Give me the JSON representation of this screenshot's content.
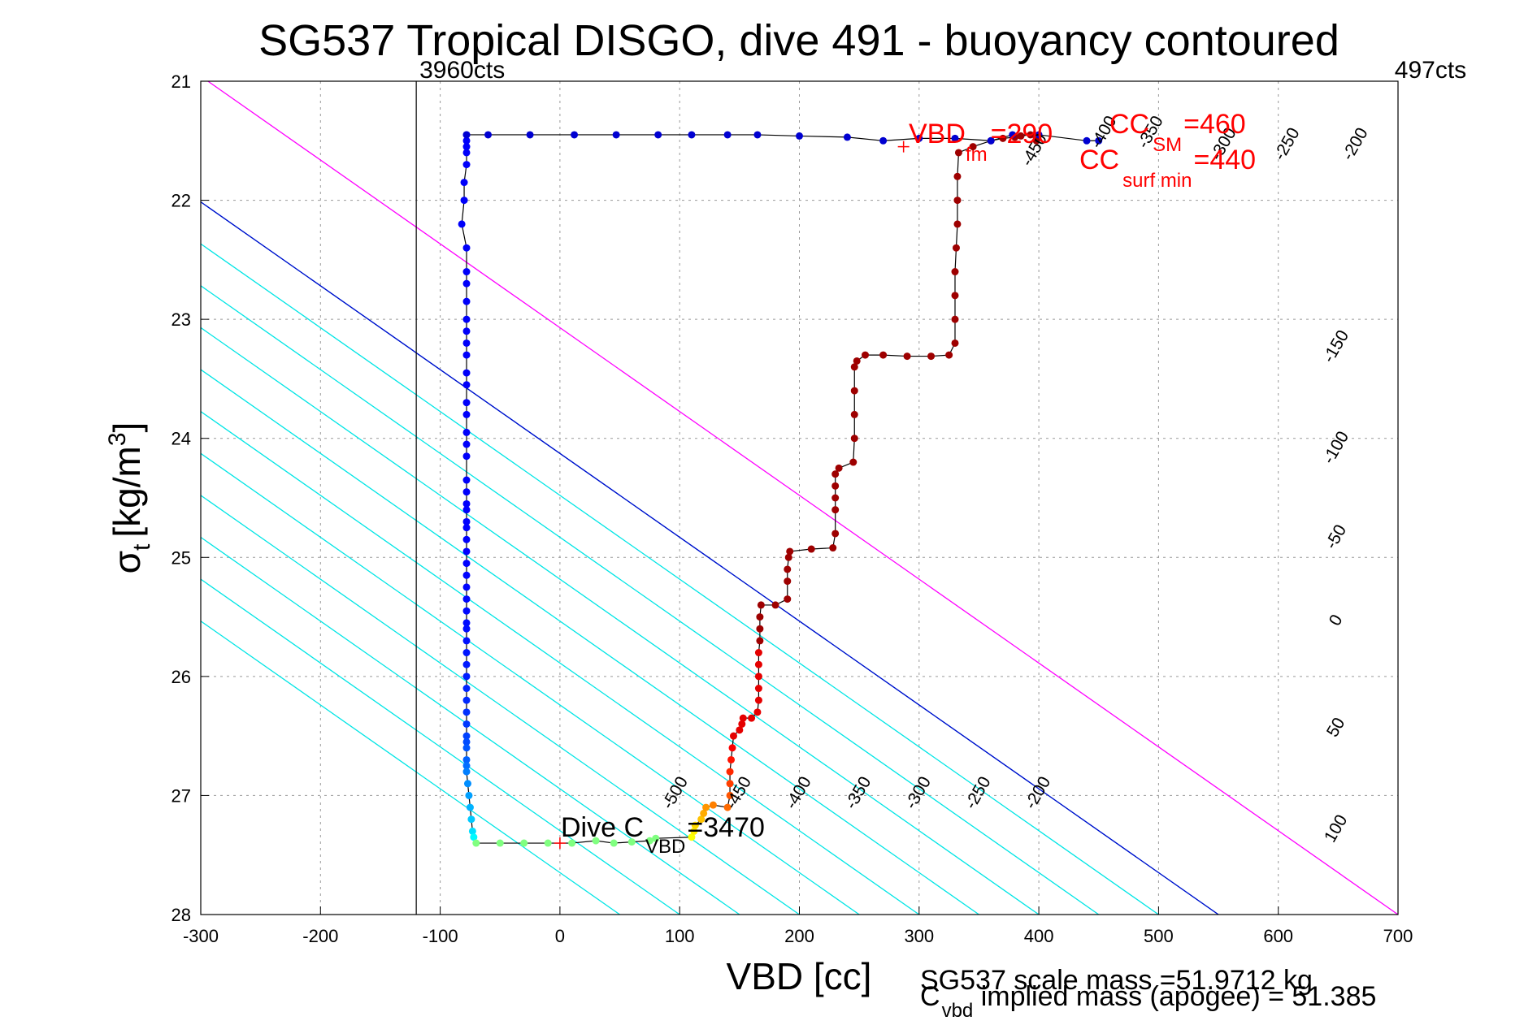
{
  "chart_data": {
    "type": "scatter",
    "title": "SG537 Tropical DISGO, dive 491 - buoyancy contoured",
    "xlabel": "VBD [cc]",
    "ylabel_base": "σ",
    "ylabel_sub": "t",
    "ylabel_unit": "[kg/m",
    "ylabel_sup": "3",
    "ylabel_close": "]",
    "xlim": [
      -300,
      700
    ],
    "ylim": [
      21,
      28
    ],
    "y_reversed": true,
    "grid": true,
    "xticks": [
      -300,
      -200,
      -100,
      0,
      100,
      200,
      300,
      400,
      500,
      600,
      700
    ],
    "yticks": [
      21,
      22,
      23,
      24,
      25,
      26,
      27,
      28
    ],
    "vline_cts": [
      {
        "x": -120,
        "label": "3960cts"
      },
      {
        "x": 700,
        "label": "497cts"
      }
    ],
    "contours": {
      "slope_cc_per_sigma": 28.5,
      "cyan_levels": [
        -550,
        -500,
        -450,
        -400,
        -350,
        -300,
        -250,
        -200,
        -150,
        -100,
        -50
      ],
      "labeled_lower": [
        {
          "level": -500,
          "text": "-500",
          "x": 100,
          "y": 27.0
        },
        {
          "level": -450,
          "text": "-450",
          "x": 153,
          "y": 27.0
        },
        {
          "level": -400,
          "text": "-400",
          "x": 203,
          "y": 27.0
        },
        {
          "level": -350,
          "text": "-350",
          "x": 253,
          "y": 27.0
        },
        {
          "level": -300,
          "text": "-300",
          "x": 303,
          "y": 27.0
        },
        {
          "level": -250,
          "text": "-250",
          "x": 353,
          "y": 27.0
        },
        {
          "level": -200,
          "text": "-200",
          "x": 403,
          "y": 27.0
        }
      ],
      "labeled_right": [
        {
          "text": "-150",
          "x": 652,
          "y": 23.25
        },
        {
          "text": "-100",
          "x": 652,
          "y": 24.1
        },
        {
          "text": "-50",
          "x": 652,
          "y": 24.85
        },
        {
          "text": "0",
          "x": 652,
          "y": 25.55
        },
        {
          "text": "50",
          "x": 652,
          "y": 26.45
        },
        {
          "text": "100",
          "x": 652,
          "y": 27.3
        }
      ],
      "labeled_top": [
        {
          "text": "-450",
          "x": 400,
          "y": 21.6
        },
        {
          "text": "-400",
          "x": 458,
          "y": 21.45
        },
        {
          "text": "-350",
          "x": 497,
          "y": 21.45
        },
        {
          "text": "-300",
          "x": 558,
          "y": 21.55
        },
        {
          "text": "-250",
          "x": 611,
          "y": 21.55
        },
        {
          "text": "-200",
          "x": 668,
          "y": 21.55
        }
      ],
      "zero_line": {
        "level": 0,
        "color": "#0000cc"
      },
      "hundred_line": {
        "level": 100,
        "color": "#ff00ff"
      }
    },
    "series": [
      {
        "descent_blue": [
          [
            -78,
            21.45
          ],
          [
            -78,
            21.5
          ],
          [
            -78,
            21.55
          ],
          [
            -78,
            21.6
          ],
          [
            -78,
            21.7
          ],
          [
            -80,
            21.85
          ],
          [
            -80,
            22.0
          ],
          [
            -82,
            22.2
          ],
          [
            -78,
            22.4
          ],
          [
            -78,
            22.6
          ],
          [
            -78,
            22.7
          ],
          [
            -78,
            22.85
          ],
          [
            -78,
            23.0
          ],
          [
            -78,
            23.1
          ],
          [
            -78,
            23.2
          ],
          [
            -78,
            23.3
          ],
          [
            -78,
            23.45
          ],
          [
            -78,
            23.55
          ],
          [
            -78,
            23.7
          ],
          [
            -78,
            23.8
          ],
          [
            -78,
            23.95
          ],
          [
            -78,
            24.05
          ],
          [
            -78,
            24.15
          ],
          [
            -78,
            24.35
          ],
          [
            -78,
            24.45
          ],
          [
            -78,
            24.55
          ],
          [
            -78,
            24.6
          ],
          [
            -78,
            24.7
          ],
          [
            -78,
            24.75
          ],
          [
            -78,
            24.85
          ],
          [
            -78,
            24.95
          ],
          [
            -78,
            25.05
          ],
          [
            -78,
            25.15
          ],
          [
            -78,
            25.25
          ],
          [
            -78,
            25.35
          ],
          [
            -78,
            25.45
          ],
          [
            -78,
            25.55
          ],
          [
            -78,
            25.6
          ],
          [
            -78,
            25.7
          ],
          [
            -78,
            25.8
          ],
          [
            -78,
            25.9
          ],
          [
            -78,
            26.0
          ],
          [
            -78,
            26.1
          ],
          [
            -78,
            26.2
          ],
          [
            -78,
            26.3
          ],
          [
            -78,
            26.4
          ],
          [
            -78,
            26.5
          ],
          [
            -78,
            26.55
          ],
          [
            -78,
            26.6
          ],
          [
            -78,
            26.7
          ],
          [
            -78,
            26.75
          ],
          [
            -78,
            26.8
          ],
          [
            -77,
            26.9
          ],
          [
            -76,
            27.0
          ],
          [
            -75,
            27.1
          ],
          [
            -74,
            27.2
          ],
          [
            -73,
            27.3
          ],
          [
            -72,
            27.35
          ]
        ],
        "bottom_green": [
          [
            -70,
            27.4
          ],
          [
            -50,
            27.4
          ],
          [
            -30,
            27.4
          ],
          [
            -10,
            27.4
          ],
          [
            10,
            27.4
          ],
          [
            30,
            27.38
          ],
          [
            45,
            27.4
          ],
          [
            60,
            27.39
          ],
          [
            75,
            27.38
          ],
          [
            80,
            27.36
          ]
        ],
        "turn_warm": [
          [
            110,
            27.35
          ],
          [
            112,
            27.3
          ],
          [
            113,
            27.25
          ],
          [
            118,
            27.2
          ],
          [
            120,
            27.15
          ],
          [
            122,
            27.1
          ],
          [
            128,
            27.08
          ],
          [
            140,
            27.1
          ],
          [
            142,
            27.0
          ],
          [
            142,
            26.9
          ],
          [
            142,
            26.8
          ],
          [
            143,
            26.7
          ],
          [
            144,
            26.6
          ],
          [
            145,
            26.5
          ]
        ],
        "ascent_red": [
          [
            150,
            26.45
          ],
          [
            152,
            26.4
          ],
          [
            153,
            26.35
          ],
          [
            160,
            26.35
          ],
          [
            165,
            26.3
          ],
          [
            166,
            26.2
          ],
          [
            166,
            26.1
          ],
          [
            166,
            26.0
          ],
          [
            166,
            25.9
          ],
          [
            166,
            25.8
          ],
          [
            167,
            25.7
          ],
          [
            167,
            25.6
          ],
          [
            167,
            25.5
          ],
          [
            168,
            25.4
          ],
          [
            180,
            25.4
          ],
          [
            190,
            25.35
          ],
          [
            190,
            25.2
          ],
          [
            190,
            25.1
          ],
          [
            191,
            25.0
          ],
          [
            192,
            24.95
          ],
          [
            210,
            24.93
          ],
          [
            228,
            24.92
          ],
          [
            230,
            24.8
          ],
          [
            230,
            24.6
          ],
          [
            230,
            24.5
          ],
          [
            230,
            24.4
          ],
          [
            230,
            24.3
          ],
          [
            233,
            24.25
          ],
          [
            245,
            24.2
          ],
          [
            246,
            24.0
          ],
          [
            246,
            23.8
          ],
          [
            246,
            23.6
          ],
          [
            246,
            23.4
          ],
          [
            248,
            23.35
          ],
          [
            255,
            23.3
          ],
          [
            270,
            23.3
          ],
          [
            290,
            23.31
          ],
          [
            310,
            23.31
          ],
          [
            325,
            23.3
          ],
          [
            330,
            23.2
          ],
          [
            330,
            23.0
          ],
          [
            330,
            22.8
          ],
          [
            330,
            22.6
          ],
          [
            331,
            22.4
          ],
          [
            332,
            22.2
          ],
          [
            332,
            22.0
          ],
          [
            332,
            21.8
          ],
          [
            333,
            21.6
          ],
          [
            345,
            21.55
          ],
          [
            360,
            21.5
          ],
          [
            370,
            21.48
          ],
          [
            380,
            21.47
          ],
          [
            385,
            21.46
          ],
          [
            393,
            21.45
          ],
          [
            398,
            21.5
          ]
        ],
        "surface_blue": [
          [
            -78,
            21.45
          ],
          [
            -60,
            21.45
          ],
          [
            -25,
            21.45
          ],
          [
            12,
            21.45
          ],
          [
            47,
            21.45
          ],
          [
            82,
            21.45
          ],
          [
            110,
            21.45
          ],
          [
            140,
            21.45
          ],
          [
            165,
            21.45
          ],
          [
            200,
            21.46
          ],
          [
            240,
            21.47
          ],
          [
            270,
            21.5
          ],
          [
            300,
            21.48
          ],
          [
            330,
            21.48
          ],
          [
            360,
            21.5
          ],
          [
            378,
            21.45
          ],
          [
            400,
            21.45
          ],
          [
            440,
            21.5
          ],
          [
            450,
            21.5
          ]
        ]
      }
    ],
    "markers": [
      {
        "x": 287,
        "y": 21.55,
        "color": "#ff0000",
        "shape": "plus"
      },
      {
        "x": 0,
        "y": 27.4,
        "color": "#ff0000",
        "shape": "plus"
      }
    ],
    "annotations": {
      "dive_c_vbd": {
        "base": "Dive C",
        "sub": "VBD",
        "tail": "=3470"
      },
      "vbd_fm": {
        "base": "VBD",
        "sub": "fm",
        "tail": "=290"
      },
      "cc_sm": {
        "base": "CC",
        "sub": "SM",
        "tail": "=460"
      },
      "cc_surf_min": {
        "base": "CC",
        "sub": "surf min",
        "tail": "=440"
      }
    },
    "footer": {
      "scale_mass": "SG537 scale mass =51.9712 kg",
      "implied_base": "C",
      "implied_sub": "vbd",
      "implied_tail": " implied mass (apogee) = 51.385"
    },
    "colors": {
      "grid": "#999999",
      "cyan_contour": "#00e5e5",
      "axis": "#000000",
      "dive_line": "#000000",
      "annot_red": "#ff0000"
    }
  }
}
